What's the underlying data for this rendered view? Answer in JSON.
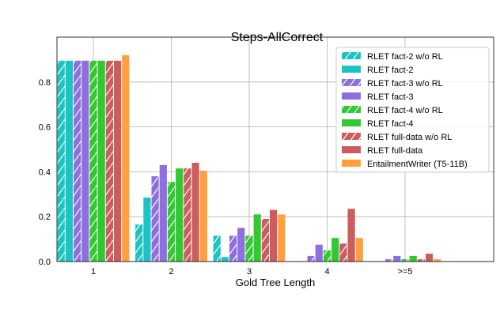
{
  "chart_data": {
    "type": "bar",
    "title": "Steps-AllCorrect",
    "xlabel": "Gold Tree Length",
    "ylabel": "",
    "ylim": [
      0,
      1.0
    ],
    "yticks": [
      "0.0",
      "0.2",
      "0.4",
      "0.6",
      "0.8"
    ],
    "ytick_values": [
      0,
      0.2,
      0.4,
      0.6,
      0.8
    ],
    "categories": [
      "1",
      "2",
      "3",
      "4",
      ">=5"
    ],
    "grid": true,
    "legend_position": "top-right",
    "series": [
      {
        "name": "RLET fact-2 w/o RL",
        "color": "#1cc3c3",
        "hatch": true,
        "values": [
          0.895,
          0.165,
          0.115,
          0,
          0
        ]
      },
      {
        "name": "RLET fact-2",
        "color": "#1cc3c3",
        "hatch": false,
        "values": [
          0.895,
          0.285,
          0.02,
          0,
          0
        ]
      },
      {
        "name": "RLET fact-3 w/o RL",
        "color": "#8e6fe0",
        "hatch": true,
        "values": [
          0.895,
          0.38,
          0.115,
          0.025,
          0.01
        ]
      },
      {
        "name": "RLET fact-3",
        "color": "#8e6fe0",
        "hatch": false,
        "values": [
          0.895,
          0.43,
          0.15,
          0.075,
          0.025
        ]
      },
      {
        "name": "RLET fact-4 w/o RL",
        "color": "#32c832",
        "hatch": true,
        "values": [
          0.895,
          0.355,
          0.115,
          0.05,
          0.01
        ]
      },
      {
        "name": "RLET fact-4",
        "color": "#32c832",
        "hatch": false,
        "values": [
          0.895,
          0.415,
          0.21,
          0.105,
          0.025
        ]
      },
      {
        "name": "RLET full-data w/o RL",
        "color": "#cd5c5c",
        "hatch": true,
        "values": [
          0.895,
          0.415,
          0.19,
          0.08,
          0.01
        ]
      },
      {
        "name": "RLET full-data",
        "color": "#cd5c5c",
        "hatch": false,
        "values": [
          0.895,
          0.44,
          0.23,
          0.235,
          0.035
        ]
      },
      {
        "name": "EntailmentWriter (T5-11B)",
        "color": "#ffa040",
        "hatch": false,
        "values": [
          0.92,
          0.405,
          0.21,
          0.105,
          0.01
        ]
      }
    ]
  }
}
